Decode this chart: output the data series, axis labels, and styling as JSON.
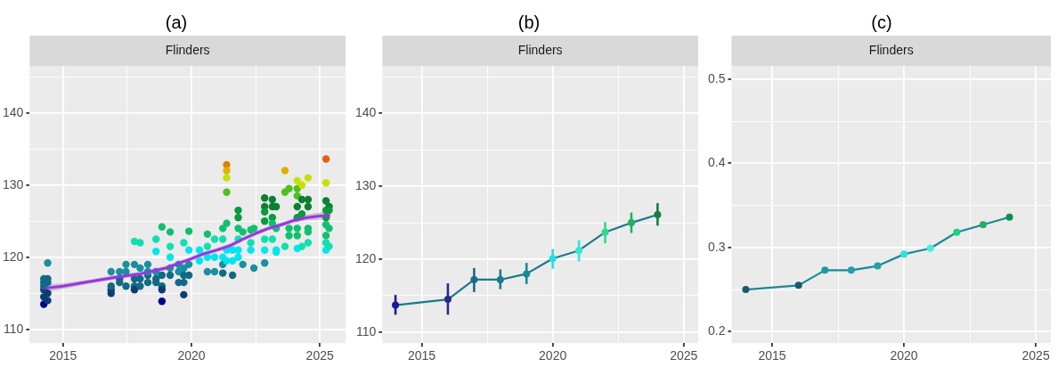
{
  "chart_data": [
    {
      "type": "scatter",
      "title": "(a)",
      "subtitle": "Flinders",
      "xlim": [
        2013.7,
        2026.0
      ],
      "ylim": [
        108.1,
        146.5
      ],
      "xticks": [
        {
          "value": 2015,
          "label": "2015"
        },
        {
          "value": 2017.5,
          "label": null
        },
        {
          "value": 2020,
          "label": "2020"
        },
        {
          "value": 2022.5,
          "label": null
        },
        {
          "value": 2025,
          "label": "2025"
        }
      ],
      "yticks": [
        110,
        {
          "value": 115,
          "label": null
        },
        120,
        {
          "value": 125,
          "label": null
        },
        130,
        {
          "value": 135,
          "label": null
        },
        140,
        {
          "value": 145,
          "label": null
        }
      ],
      "grid": true,
      "marker": "circle",
      "series": [
        {
          "x": [
            2014.25,
            2014.25,
            2014.25,
            2014.25,
            2014.25,
            2014.25,
            2014.4,
            2014.4,
            2014.4,
            2014.4,
            2014.4,
            2016.87,
            2016.87,
            2016.87,
            2016.87,
            2017.2,
            2017.2,
            2017.2,
            2017.45,
            2017.45,
            2017.45,
            2017.78,
            2017.78,
            2017.78,
            2017.78,
            2017.78,
            2018.0,
            2018.0,
            2018.0,
            2018.0,
            2018.3,
            2018.3,
            2018.3,
            2018.3,
            2018.62,
            2018.62,
            2018.62,
            2018.62,
            2018.62,
            2018.85,
            2018.85,
            2018.85,
            2018.85,
            2018.85,
            2019.17,
            2019.17,
            2019.17,
            2019.17,
            2019.17,
            2019.5,
            2019.5,
            2019.5,
            2019.7,
            2019.7,
            2019.7,
            2019.7,
            2019.7,
            2019.9,
            2019.9,
            2019.9,
            2019.9,
            2020.31,
            2020.31,
            2020.62,
            2020.62,
            2020.62,
            2020.62,
            2020.9,
            2020.9,
            2020.9,
            2021.22,
            2021.22,
            2021.22,
            2021.22,
            2021.22,
            2021.37,
            2021.37,
            2021.37,
            2021.37,
            2021.37,
            2021.37,
            2021.37,
            2021.6,
            2021.6,
            2021.6,
            2021.82,
            2021.82,
            2021.82,
            2021.82,
            2021.82,
            2021.82,
            2022.0,
            2022.0,
            2022.31,
            2022.31,
            2022.31,
            2022.43,
            2022.43,
            2022.85,
            2022.85,
            2022.85,
            2022.85,
            2022.85,
            2022.85,
            2022.85,
            2023.15,
            2023.15,
            2023.15,
            2023.15,
            2023.15,
            2023.3,
            2023.3,
            2023.3,
            2023.3,
            2023.64,
            2023.64,
            2023.64,
            2023.8,
            2023.8,
            2023.8,
            2024.12,
            2024.12,
            2024.12,
            2024.12,
            2024.12,
            2024.12,
            2024.12,
            2024.12,
            2024.3,
            2024.3,
            2024.3,
            2024.3,
            2024.54,
            2024.54,
            2024.54,
            2024.54,
            2024.54,
            2024.54,
            2025.24,
            2025.24,
            2025.24,
            2025.24,
            2025.24,
            2025.24,
            2025.24,
            2025.24,
            2025.24,
            2025.36,
            2025.36,
            2025.36,
            2025.36
          ],
          "values": [
            113.5,
            114.5,
            115.5,
            116,
            116.5,
            117,
            114,
            115,
            116.5,
            117,
            119.2,
            115,
            115.5,
            116,
            118,
            118,
            117,
            116.5,
            119,
            118,
            116,
            122.2,
            119,
            117,
            116,
            115.5,
            122,
            118.5,
            117,
            116,
            117.5,
            116.5,
            119,
            118,
            120.8,
            122.5,
            118,
            117,
            116.5,
            124.2,
            117.5,
            116,
            115.5,
            113.9,
            123.5,
            121.5,
            120,
            118.5,
            117.5,
            119,
            118,
            116.5,
            122,
            118.5,
            117.5,
            116.5,
            114.8,
            123.6,
            121,
            119,
            117.5,
            121,
            119.5,
            123.2,
            121.5,
            120,
            118,
            122.5,
            120,
            118,
            124,
            122.5,
            120,
            119,
            117.8,
            132.8,
            132,
            131,
            129,
            124.7,
            121,
            119.5,
            117.5,
            119.5,
            121,
            126.5,
            125.5,
            124,
            122.5,
            121,
            120,
            123.5,
            119,
            123.8,
            122,
            121,
            124,
            118.5,
            128.2,
            127,
            126.3,
            125,
            122.5,
            121,
            119.2,
            128,
            127,
            125.5,
            124.7,
            122.5,
            127,
            124,
            121,
            120.7,
            132,
            129,
            121.5,
            129.5,
            124,
            123,
            130.6,
            129.5,
            128.5,
            127,
            125.5,
            124,
            123,
            121.2,
            130,
            128,
            126,
            121.5,
            131,
            128,
            127,
            124,
            123.5,
            122,
            133.6,
            130.3,
            127.8,
            126.5,
            125.5,
            124.5,
            123,
            122,
            121,
            127,
            126.5,
            124,
            121.5
          ],
          "colors": [
            "#00008b",
            "#0d3d73",
            "#0d3d73",
            "#116a85",
            "#116a85",
            "#116a85",
            "#0d3d73",
            "#0d3d73",
            "#116a85",
            "#116a85",
            "#1a8fa0",
            "#0d3d73",
            "#0d3d73",
            "#116a85",
            "#1a8fa0",
            "#1a8fa0",
            "#116a85",
            "#116a85",
            "#1a8fa0",
            "#1a8fa0",
            "#116a85",
            "#10e0b0",
            "#1a8fa0",
            "#116a85",
            "#116a85",
            "#0d3d73",
            "#10e0b0",
            "#1a8fa0",
            "#116a85",
            "#116a85",
            "#116a85",
            "#116a85",
            "#1a8fa0",
            "#1a8fa0",
            "#00e5ee",
            "#10e0b0",
            "#1a8fa0",
            "#116a85",
            "#116a85",
            "#10c070",
            "#116a85",
            "#116a85",
            "#0d3d73",
            "#00008b",
            "#10c070",
            "#10e0b0",
            "#00e5ee",
            "#1a8fa0",
            "#116a85",
            "#1a8fa0",
            "#1a8fa0",
            "#116a85",
            "#10e0b0",
            "#1a8fa0",
            "#116a85",
            "#116a85",
            "#0d3d73",
            "#10c070",
            "#00e5ee",
            "#1a8fa0",
            "#116a85",
            "#00e5ee",
            "#00e5ee",
            "#10c070",
            "#10e0b0",
            "#00e5ee",
            "#1a8fa0",
            "#10e0b0",
            "#00e5ee",
            "#1a8fa0",
            "#10c070",
            "#10e0b0",
            "#00e5ee",
            "#1a8fa0",
            "#116a85",
            "#e08000",
            "#e0b000",
            "#c8e000",
            "#50c020",
            "#10c070",
            "#00e5ee",
            "#00e5ee",
            "#116a85",
            "#00e5ee",
            "#00e5ee",
            "#0a9a40",
            "#0a9a40",
            "#10c070",
            "#10e0b0",
            "#00e5ee",
            "#00e5ee",
            "#10c070",
            "#1a8fa0",
            "#10c070",
            "#10e0b0",
            "#00e5ee",
            "#10c070",
            "#1a8fa0",
            "#0a8030",
            "#0a8030",
            "#0a9a40",
            "#0a9a40",
            "#10e0b0",
            "#00e5ee",
            "#1a8fa0",
            "#0a8030",
            "#0a8030",
            "#0a9a40",
            "#10c070",
            "#10e0b0",
            "#0a8030",
            "#10c070",
            "#00e5ee",
            "#00e5ee",
            "#e0b000",
            "#50c020",
            "#10e0b0",
            "#50c020",
            "#10c070",
            "#10c070",
            "#c8e000",
            "#50c020",
            "#50c020",
            "#0a8030",
            "#0a9a40",
            "#10c070",
            "#10c070",
            "#00e5ee",
            "#c8e000",
            "#0a8030",
            "#0a9a40",
            "#10e0b0",
            "#c8e000",
            "#0a8030",
            "#0a8030",
            "#10c070",
            "#10c070",
            "#10e0b0",
            "#e06010",
            "#c8e000",
            "#0a8030",
            "#0a9a40",
            "#0a9a40",
            "#10c070",
            "#10c070",
            "#10e0b0",
            "#00e5ee",
            "#0a8030",
            "#0a9a40",
            "#10c070",
            "#10e0b0"
          ]
        },
        {
          "type": "line",
          "marker": "none",
          "color": "#a030e8",
          "x": [
            2014.3,
            2015,
            2016,
            2017,
            2018,
            2019,
            2020,
            2020.5,
            2021,
            2021.5,
            2022,
            2022.5,
            2023,
            2023.5,
            2024,
            2024.5,
            2025,
            2025.4
          ],
          "values": [
            115.7,
            116.0,
            116.6,
            117.2,
            117.7,
            118.5,
            119.8,
            120.5,
            121.0,
            121.6,
            122.5,
            123.3,
            124.0,
            124.5,
            125.1,
            125.5,
            125.7,
            125.8
          ],
          "lower": [
            115.2,
            115.6,
            116.3,
            116.9,
            117.4,
            118.2,
            119.5,
            120.2,
            120.7,
            121.3,
            122.2,
            123.0,
            123.7,
            124.2,
            124.8,
            125.1,
            125.2,
            125.2
          ],
          "upper": [
            116.2,
            116.4,
            116.9,
            117.5,
            118.0,
            118.8,
            120.1,
            120.8,
            121.3,
            121.9,
            122.8,
            123.6,
            124.3,
            124.8,
            125.4,
            125.9,
            126.2,
            126.4
          ]
        }
      ]
    },
    {
      "type": "line",
      "title": "(b)",
      "subtitle": "Flinders",
      "xlim": [
        2013.5,
        2025.55
      ],
      "ylim": [
        108.5,
        146.5
      ],
      "xticks": [
        {
          "value": 2015,
          "label": "2015"
        },
        {
          "value": 2017.5,
          "label": null
        },
        {
          "value": 2020,
          "label": "2020"
        },
        {
          "value": 2022.5,
          "label": null
        },
        {
          "value": 2025,
          "label": "2025"
        }
      ],
      "yticks": [
        110,
        {
          "value": 115,
          "label": null
        },
        120,
        {
          "value": 125,
          "label": null
        },
        130,
        {
          "value": 135,
          "label": null
        },
        140,
        {
          "value": 145,
          "label": null
        }
      ],
      "grid": true,
      "marker": "circle",
      "series": [
        {
          "color": "#1a7a8a",
          "x": [
            2014,
            2016,
            2017,
            2018,
            2019,
            2020,
            2021,
            2022,
            2023,
            2024
          ],
          "values": [
            113.7,
            114.5,
            117.2,
            117.2,
            118.0,
            120.1,
            121.2,
            123.7,
            125.0,
            126.1
          ],
          "errors": [
            [
              112.4,
              115.1
            ],
            [
              112.4,
              116.7
            ],
            [
              115.5,
              118.8
            ],
            [
              115.9,
              118.6
            ],
            [
              116.6,
              119.5
            ],
            [
              118.7,
              121.4
            ],
            [
              119.7,
              122.6
            ],
            [
              122.2,
              125.1
            ],
            [
              123.6,
              126.4
            ],
            [
              124.6,
              127.7
            ]
          ],
          "colors": [
            "#1a1a9a",
            "#2a2a8a",
            "#1a6a8a",
            "#1a7a8a",
            "#1a8a90",
            "#20e0e0",
            "#30e8d8",
            "#30d890",
            "#20b060",
            "#108040"
          ]
        }
      ]
    },
    {
      "type": "line",
      "title": "(c)",
      "subtitle": "Flinders",
      "xlim": [
        2013.46,
        2025.57
      ],
      "ylim": [
        0.1864,
        0.5156
      ],
      "xticks": [
        {
          "value": 2015,
          "label": "2015"
        },
        {
          "value": 2017.5,
          "label": null
        },
        {
          "value": 2020,
          "label": "2020"
        },
        {
          "value": 2022.5,
          "label": null
        },
        {
          "value": 2025,
          "label": "2025"
        }
      ],
      "yticks": [
        0.2,
        {
          "value": 0.25,
          "label": null
        },
        0.3,
        {
          "value": 0.35,
          "label": null
        },
        0.4,
        {
          "value": 0.45,
          "label": null
        },
        0.5
      ],
      "grid": true,
      "marker": "circle",
      "series": [
        {
          "color": "#1a8a95",
          "x": [
            2014,
            2016,
            2017,
            2018,
            2019,
            2020,
            2021,
            2022,
            2023,
            2024
          ],
          "values": [
            0.25,
            0.255,
            0.273,
            0.273,
            0.278,
            0.292,
            0.299,
            0.318,
            0.327,
            0.336
          ],
          "colors": [
            "#1a5a6a",
            "#1a5a70",
            "#1a9aa0",
            "#20a0a8",
            "#20a0a8",
            "#30e0e0",
            "#40f0e0",
            "#20d080",
            "#20b060",
            "#109050"
          ]
        }
      ]
    }
  ]
}
